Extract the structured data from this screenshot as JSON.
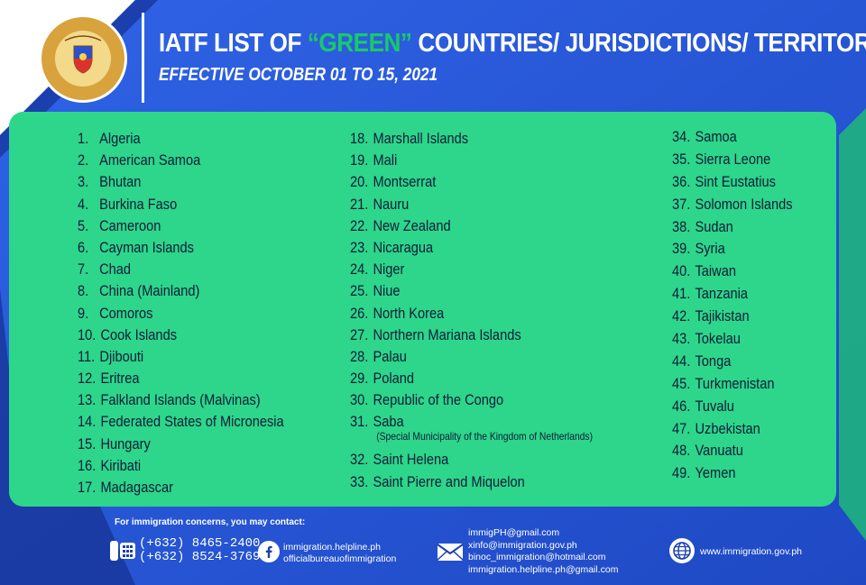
{
  "header": {
    "logo_text_top": "BUREAU OF IMMIGRATION",
    "logo_text_bottom": "DEPARTMENT OF JUSTICE",
    "title_before": "IATF LIST OF ",
    "title_green": "“GREEN”",
    "title_after": " COUNTRIES/ JURISDICTIONS/ TERRITORIES",
    "subtitle": "EFFECTIVE OCTOBER 01 TO 15, 2021"
  },
  "colors": {
    "navy": "#1c3fae",
    "blue": "#2f63e6",
    "panel_green": "#2dd68a",
    "title_green": "#19c96a",
    "text": "#0f1b3a"
  },
  "columns": [
    [
      {
        "num": "1.",
        "name": "Algeria"
      },
      {
        "num": "2.",
        "name": "American Samoa"
      },
      {
        "num": "3.",
        "name": "Bhutan"
      },
      {
        "num": "4.",
        "name": "Burkina Faso"
      },
      {
        "num": "5.",
        "name": "Cameroon"
      },
      {
        "num": "6.",
        "name": "Cayman Islands"
      },
      {
        "num": "7.",
        "name": "Chad"
      },
      {
        "num": "8.",
        "name": "China (Mainland)"
      },
      {
        "num": "9.",
        "name": "Comoros"
      },
      {
        "num": "10.",
        "name": "Cook Islands"
      },
      {
        "num": "11.",
        "name": "Djibouti"
      },
      {
        "num": "12.",
        "name": "Eritrea"
      },
      {
        "num": "13.",
        "name": "Falkland Islands (Malvinas)"
      },
      {
        "num": "14.",
        "name": "Federated States of Micronesia"
      },
      {
        "num": "15.",
        "name": "Hungary"
      },
      {
        "num": "16.",
        "name": "Kiribati"
      },
      {
        "num": "17.",
        "name": "Madagascar"
      }
    ],
    [
      {
        "num": "18.",
        "name": "Marshall Islands"
      },
      {
        "num": "19.",
        "name": "Mali"
      },
      {
        "num": "20.",
        "name": "Montserrat"
      },
      {
        "num": "21.",
        "name": "Nauru"
      },
      {
        "num": "22.",
        "name": "New Zealand"
      },
      {
        "num": "23.",
        "name": "Nicaragua"
      },
      {
        "num": "24.",
        "name": "Niger"
      },
      {
        "num": "25.",
        "name": "Niue"
      },
      {
        "num": "26.",
        "name": "North Korea"
      },
      {
        "num": "27.",
        "name": "Northern Mariana Islands"
      },
      {
        "num": "28.",
        "name": "Palau"
      },
      {
        "num": "29.",
        "name": "Poland"
      },
      {
        "num": "30.",
        "name": "Republic of the Congo"
      },
      {
        "num": "31.",
        "name": "Saba",
        "note": "(Special Municipality of the Kingdom of Netherlands)"
      },
      {
        "num": "32.",
        "name": "Saint Helena"
      },
      {
        "num": "33.",
        "name": "Saint Pierre and Miquelon"
      }
    ],
    [
      {
        "num": "34.",
        "name": "Samoa"
      },
      {
        "num": "35.",
        "name": "Sierra Leone"
      },
      {
        "num": "36.",
        "name": "Sint Eustatius"
      },
      {
        "num": "37.",
        "name": "Solomon Islands"
      },
      {
        "num": "38.",
        "name": "Sudan"
      },
      {
        "num": "39.",
        "name": "Syria"
      },
      {
        "num": "40.",
        "name": "Taiwan"
      },
      {
        "num": "41.",
        "name": "Tanzania"
      },
      {
        "num": "42.",
        "name": "Tajikistan"
      },
      {
        "num": "43.",
        "name": "Tokelau"
      },
      {
        "num": "44.",
        "name": "Tonga"
      },
      {
        "num": "45.",
        "name": "Turkmenistan"
      },
      {
        "num": "46.",
        "name": "Tuvalu"
      },
      {
        "num": "47.",
        "name": "Uzbekistan"
      },
      {
        "num": "48.",
        "name": "Vanuatu"
      },
      {
        "num": "49.",
        "name": "Yemen"
      }
    ]
  ],
  "contact": {
    "heading": "For immigration concerns, you may contact:",
    "phones": [
      "(+632) 8465-2400",
      "(+632) 8524-3769"
    ],
    "facebook": [
      "immigration.helpline.ph",
      "officialbureauofimmigration"
    ],
    "emails": [
      "immigPH@gmail.com",
      "xinfo@immigration.gov.ph",
      "binoc_immigration@hotmail.com",
      "immigration.helpline.ph@gmail.com"
    ],
    "website": "www.immigration.gov.ph",
    "icons": [
      "phone-icon",
      "facebook-icon",
      "email-icon",
      "globe-icon"
    ]
  }
}
